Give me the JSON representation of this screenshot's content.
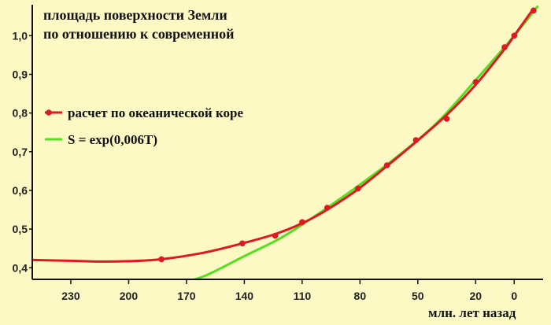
{
  "chart_data": {
    "type": "line",
    "title_line1": "площадь поверхности Земли",
    "title_line2": "по отношению к современной",
    "xlabel": "млн. лет назад",
    "ylabel": "",
    "x_reversed": true,
    "xlim": [
      250,
      -15
    ],
    "ylim": [
      0.37,
      1.08
    ],
    "x_ticks": [
      230,
      200,
      170,
      140,
      110,
      80,
      50,
      20,
      0
    ],
    "y_ticks": [
      0.4,
      0.5,
      0.6,
      0.7,
      0.8,
      0.9,
      1.0
    ],
    "x_tick_labels": [
      "230",
      "200",
      "170",
      "140",
      "110",
      "80",
      "50",
      "20",
      "0"
    ],
    "y_tick_labels": [
      "0,4",
      "0,5",
      "0,6",
      "0,7",
      "0,8",
      "0,9",
      "1,0"
    ],
    "legend_position": "middle-left",
    "series": [
      {
        "name": "расчет по океанической коре",
        "color": "#dd1a22",
        "style": "line-with-markers",
        "markers_x": [
          183,
          141,
          124,
          110,
          97,
          81,
          66,
          51,
          35,
          20,
          5,
          0,
          -10
        ],
        "markers_y": [
          0.422,
          0.463,
          0.483,
          0.518,
          0.555,
          0.605,
          0.665,
          0.73,
          0.785,
          0.88,
          0.97,
          1.0,
          1.065
        ],
        "curve_x": [
          250,
          230,
          215,
          200,
          183,
          160,
          141,
          124,
          110,
          97,
          81,
          66,
          51,
          35,
          20,
          5,
          0,
          -10
        ],
        "curve_y": [
          0.42,
          0.418,
          0.416,
          0.417,
          0.422,
          0.44,
          0.463,
          0.487,
          0.515,
          0.55,
          0.603,
          0.663,
          0.725,
          0.795,
          0.873,
          0.965,
          1.0,
          1.07
        ]
      },
      {
        "name": "S = exp(0,006T)",
        "color": "#55dd22",
        "style": "line",
        "curve_x": [
          173,
          160,
          140,
          120,
          100,
          80,
          60,
          40,
          20,
          0,
          -12
        ],
        "curve_y": [
          0.36,
          0.38,
          0.43,
          0.48,
          0.545,
          0.615,
          0.69,
          0.775,
          0.885,
          1.0,
          1.075
        ]
      }
    ]
  }
}
